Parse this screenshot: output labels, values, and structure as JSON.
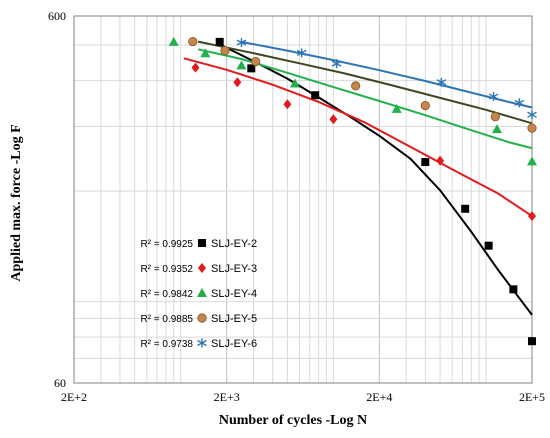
{
  "chart_data": {
    "type": "scatter",
    "xlabel": "Number of cycles -Log N",
    "ylabel": "Applied max. force -Log F",
    "x_scale": "log",
    "y_scale": "log",
    "xlim": [
      200,
      200000
    ],
    "ylim": [
      60,
      600
    ],
    "x_tick_labels": [
      "2E+2",
      "2E+3",
      "2E+4",
      "2E+5"
    ],
    "x_tick_values": [
      200,
      2000,
      20000,
      200000
    ],
    "y_tick_labels": [
      "60",
      "600"
    ],
    "y_tick_values": [
      60,
      600
    ],
    "grid": true,
    "legend_position": "bottom-left",
    "series": [
      {
        "name": "SLJ-EY-2",
        "r2": "R² = 0.9925",
        "color": "#000000",
        "marker": "square",
        "points": [
          {
            "x": 1800,
            "y": 510
          },
          {
            "x": 2900,
            "y": 432
          },
          {
            "x": 7600,
            "y": 365
          },
          {
            "x": 40000,
            "y": 240
          },
          {
            "x": 73000,
            "y": 179
          },
          {
            "x": 104000,
            "y": 142
          },
          {
            "x": 151000,
            "y": 108
          },
          {
            "x": 200000,
            "y": 78
          }
        ],
        "trend": [
          {
            "x": 1800,
            "y": 502
          },
          {
            "x": 3000,
            "y": 452
          },
          {
            "x": 5000,
            "y": 405
          },
          {
            "x": 8000,
            "y": 360
          },
          {
            "x": 13000,
            "y": 318
          },
          {
            "x": 20000,
            "y": 283
          },
          {
            "x": 32000,
            "y": 245
          },
          {
            "x": 50000,
            "y": 201
          },
          {
            "x": 80000,
            "y": 155
          },
          {
            "x": 120000,
            "y": 122
          },
          {
            "x": 160000,
            "y": 104
          },
          {
            "x": 200000,
            "y": 92
          }
        ]
      },
      {
        "name": "SLJ-EY-3",
        "r2": "R² = 0.9352",
        "color": "#e31a1c",
        "marker": "diamond",
        "points": [
          {
            "x": 1250,
            "y": 434
          },
          {
            "x": 2350,
            "y": 396
          },
          {
            "x": 5000,
            "y": 345
          },
          {
            "x": 10000,
            "y": 314
          },
          {
            "x": 50000,
            "y": 242
          },
          {
            "x": 200000,
            "y": 171
          }
        ],
        "trend": [
          {
            "x": 1050,
            "y": 460
          },
          {
            "x": 2000,
            "y": 428
          },
          {
            "x": 4000,
            "y": 390
          },
          {
            "x": 8000,
            "y": 350
          },
          {
            "x": 16000,
            "y": 308
          },
          {
            "x": 32000,
            "y": 264
          },
          {
            "x": 64000,
            "y": 226
          },
          {
            "x": 120000,
            "y": 197
          },
          {
            "x": 200000,
            "y": 171
          }
        ]
      },
      {
        "name": "SLJ-EY-4",
        "r2": "R² = 0.9842",
        "color": "#22b04b",
        "marker": "triangle",
        "points": [
          {
            "x": 900,
            "y": 510
          },
          {
            "x": 1450,
            "y": 475
          },
          {
            "x": 2500,
            "y": 440
          },
          {
            "x": 5600,
            "y": 393
          },
          {
            "x": 26000,
            "y": 335
          },
          {
            "x": 118000,
            "y": 295
          },
          {
            "x": 200000,
            "y": 241
          }
        ],
        "trend": [
          {
            "x": 1300,
            "y": 487
          },
          {
            "x": 2500,
            "y": 458
          },
          {
            "x": 5000,
            "y": 420
          },
          {
            "x": 10000,
            "y": 384
          },
          {
            "x": 20000,
            "y": 352
          },
          {
            "x": 40000,
            "y": 322
          },
          {
            "x": 80000,
            "y": 293
          },
          {
            "x": 140000,
            "y": 272
          },
          {
            "x": 200000,
            "y": 262
          }
        ]
      },
      {
        "name": "SLJ-EY-5",
        "r2": "R² = 0.9885",
        "color": "#c8844a",
        "marker": "circle",
        "points": [
          {
            "x": 1200,
            "y": 511
          },
          {
            "x": 1950,
            "y": 483
          },
          {
            "x": 3100,
            "y": 451
          },
          {
            "x": 14000,
            "y": 387
          },
          {
            "x": 40000,
            "y": 342
          },
          {
            "x": 115000,
            "y": 319
          },
          {
            "x": 200000,
            "y": 297
          }
        ],
        "trend": [
          {
            "x": 1300,
            "y": 511
          },
          {
            "x": 3000,
            "y": 475
          },
          {
            "x": 6000,
            "y": 446
          },
          {
            "x": 12000,
            "y": 418
          },
          {
            "x": 25000,
            "y": 387
          },
          {
            "x": 50000,
            "y": 359
          },
          {
            "x": 100000,
            "y": 333
          },
          {
            "x": 200000,
            "y": 306
          }
        ]
      },
      {
        "name": "SLJ-EY-6",
        "r2": "R² = 0.9738",
        "color": "#2e75b6",
        "marker": "asterisk",
        "points": [
          {
            "x": 2500,
            "y": 508
          },
          {
            "x": 6200,
            "y": 476
          },
          {
            "x": 10500,
            "y": 445
          },
          {
            "x": 51000,
            "y": 396
          },
          {
            "x": 112000,
            "y": 362
          },
          {
            "x": 165000,
            "y": 348
          },
          {
            "x": 200000,
            "y": 323
          }
        ],
        "trend": [
          {
            "x": 2500,
            "y": 510
          },
          {
            "x": 5000,
            "y": 483
          },
          {
            "x": 10000,
            "y": 455
          },
          {
            "x": 20000,
            "y": 427
          },
          {
            "x": 40000,
            "y": 399
          },
          {
            "x": 80000,
            "y": 371
          },
          {
            "x": 140000,
            "y": 350
          },
          {
            "x": 200000,
            "y": 338
          }
        ]
      }
    ]
  }
}
